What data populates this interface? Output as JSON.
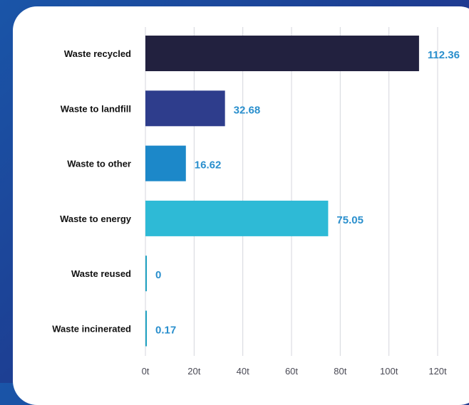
{
  "chart_data": {
    "type": "bar",
    "orientation": "horizontal",
    "categories": [
      "Waste recycled",
      "Waste to landfill",
      "Waste to other",
      "Waste to energy",
      "Waste reused",
      "Waste incinerated"
    ],
    "values": [
      112.36,
      32.68,
      16.62,
      75.05,
      0,
      0.17
    ],
    "value_labels": [
      "112.36",
      "32.68",
      "16.62",
      "75.05",
      "0",
      "0.17"
    ],
    "bar_colors": [
      "#22213f",
      "#2e3d8c",
      "#1c88c9",
      "#2ebad6",
      "#1fa2c2",
      "#1fa2c2"
    ],
    "label_color": "#2a8fcd",
    "xlim": [
      0,
      120
    ],
    "ticks": [
      0,
      20,
      40,
      60,
      80,
      100,
      120
    ],
    "tick_labels": [
      "0t",
      "20t",
      "40t",
      "60t",
      "80t",
      "100t",
      "120t"
    ],
    "grid": true,
    "title": "",
    "xlabel": "",
    "ylabel": ""
  }
}
